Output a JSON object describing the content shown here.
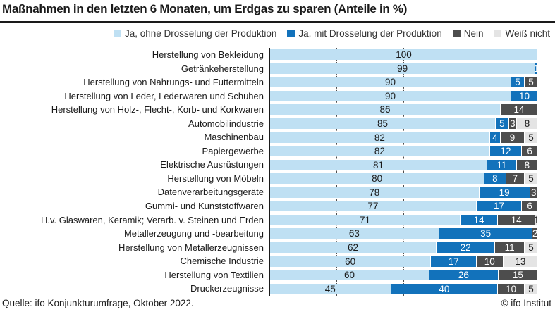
{
  "title": "Maßnahmen in den letzten 6 Monaten, um Erdgas zu sparen (Anteile in %)",
  "footer": {
    "source": "Quelle: ifo Konjunkturumfrage, Oktober 2022.",
    "copyright": "© ifo Institut"
  },
  "colors": {
    "yes_without": "#bfe0f3",
    "yes_with": "#1272bb",
    "no": "#4d4d4d",
    "dont_know": "#e4e4e4",
    "axis": "#1a1a1a",
    "gridline": "#4d4d4d"
  },
  "chart_data": {
    "type": "bar",
    "orientation": "horizontal",
    "stacked": true,
    "title": "Maßnahmen in den letzten 6 Monaten, um Erdgas zu sparen (Anteile in %)",
    "xlabel": "",
    "ylabel": "",
    "xlim": [
      0,
      100
    ],
    "gridlines_at": [
      25,
      50,
      75,
      100
    ],
    "legend_position": "top-right",
    "categories": [
      "Herstellung von Bekleidung",
      "Getränkeherstellung",
      "Herstellung von Nahrungs- und Futtermitteln",
      "Herstellung von Leder, Lederwaren und Schuhen",
      "Herstellung von Holz-, Flecht-, Korb- und Korkwaren",
      "Automobilindustrie",
      "Maschinenbau",
      "Papiergewerbe",
      "Elektrische Ausrüstungen",
      "Herstellung von Möbeln",
      "Datenverarbeitungsgeräte",
      "Gummi- und Kunststoffwaren",
      "H.v. Glaswaren, Keramik; Verarb. v. Steinen und Erden",
      "Metallerzeugung und -bearbeitung",
      "Herstellung von Metallerzeugnissen",
      "Chemische Industrie",
      "Herstellung von Textilien",
      "Druckerzeugnisse"
    ],
    "series": [
      {
        "name": "Ja, ohne Drosselung der Produktion",
        "color": "#bfe0f3",
        "label_color": "#1a1a1a",
        "values": [
          100,
          99,
          90,
          90,
          86,
          85,
          82,
          82,
          81,
          80,
          78,
          77,
          71,
          63,
          62,
          60,
          60,
          45
        ]
      },
      {
        "name": "Ja, mit Drosselung der Produktion",
        "color": "#1272bb",
        "label_color": "#ffffff",
        "values": [
          0,
          1,
          5,
          10,
          0,
          5,
          4,
          12,
          11,
          8,
          19,
          17,
          14,
          35,
          22,
          17,
          26,
          40
        ]
      },
      {
        "name": "Nein",
        "color": "#4d4d4d",
        "label_color": "#ffffff",
        "values": [
          0,
          0,
          5,
          0,
          14,
          3,
          9,
          6,
          8,
          7,
          3,
          6,
          14,
          2,
          11,
          10,
          15,
          10
        ]
      },
      {
        "name": "Weiß nicht",
        "color": "#e4e4e4",
        "label_color": "#1a1a1a",
        "values": [
          0,
          0,
          0,
          0,
          0,
          8,
          5,
          0,
          0,
          5,
          0,
          0,
          1,
          0,
          5,
          13,
          0,
          5
        ]
      }
    ]
  }
}
